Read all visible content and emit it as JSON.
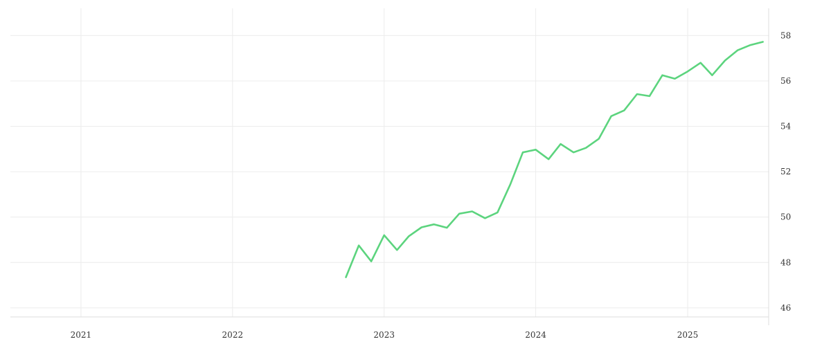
{
  "chart_data": {
    "type": "line",
    "title": "",
    "xlabel": "",
    "ylabel": "",
    "x_ticks": [
      "2021",
      "2022",
      "2023",
      "2024",
      "2025"
    ],
    "y_ticks": [
      46,
      48,
      50,
      52,
      54,
      56,
      58
    ],
    "xlim": [
      "2020-07-15",
      "2025-07-15"
    ],
    "ylim": [
      45.6,
      59.2
    ],
    "y_axis_position": "right",
    "grid": true,
    "legend": "none",
    "series": [
      {
        "color": "#5cd47e",
        "points": [
          [
            "2022-10-01",
            47.35
          ],
          [
            "2022-11-01",
            48.75
          ],
          [
            "2022-12-01",
            48.05
          ],
          [
            "2023-01-01",
            49.2
          ],
          [
            "2023-02-01",
            48.55
          ],
          [
            "2023-03-01",
            49.15
          ],
          [
            "2023-04-01",
            49.55
          ],
          [
            "2023-05-01",
            49.68
          ],
          [
            "2023-06-01",
            49.53
          ],
          [
            "2023-07-01",
            50.15
          ],
          [
            "2023-08-01",
            50.25
          ],
          [
            "2023-09-01",
            49.95
          ],
          [
            "2023-10-01",
            50.2
          ],
          [
            "2023-11-01",
            51.45
          ],
          [
            "2023-12-01",
            52.85
          ],
          [
            "2024-01-01",
            52.97
          ],
          [
            "2024-02-01",
            52.55
          ],
          [
            "2024-03-01",
            53.22
          ],
          [
            "2024-04-01",
            52.85
          ],
          [
            "2024-05-01",
            53.05
          ],
          [
            "2024-06-01",
            53.45
          ],
          [
            "2024-07-01",
            54.45
          ],
          [
            "2024-08-01",
            54.7
          ],
          [
            "2024-09-01",
            55.42
          ],
          [
            "2024-10-01",
            55.33
          ],
          [
            "2024-11-01",
            56.25
          ],
          [
            "2024-12-01",
            56.1
          ],
          [
            "2025-01-01",
            56.42
          ],
          [
            "2025-02-01",
            56.8
          ],
          [
            "2025-03-01",
            56.25
          ],
          [
            "2025-04-01",
            56.9
          ],
          [
            "2025-05-01",
            57.35
          ],
          [
            "2025-06-01",
            57.58
          ],
          [
            "2025-07-01",
            57.72
          ]
        ]
      }
    ]
  }
}
